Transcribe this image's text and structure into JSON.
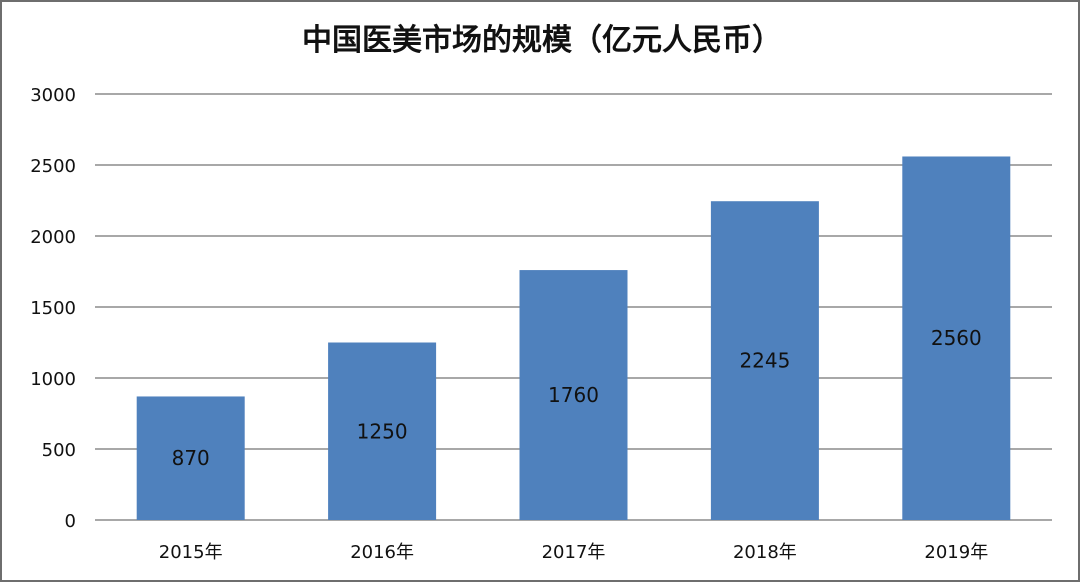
{
  "chart_data": {
    "type": "bar",
    "title": "中国医美市场的规模（亿元人民币）",
    "categories": [
      "2015年",
      "2016年",
      "2017年",
      "2018年",
      "2019年"
    ],
    "values": [
      870,
      1250,
      1760,
      2245,
      2560
    ],
    "data_labels": [
      "870",
      "1250",
      "1760",
      "2245",
      "2560"
    ],
    "y_ticks": [
      0,
      500,
      1000,
      1500,
      2000,
      2500,
      3000
    ],
    "ylim": [
      0,
      3000
    ],
    "grid": true,
    "legend": "none",
    "bar_color": "#4f81bd",
    "grid_color": "#8c8c8c"
  }
}
